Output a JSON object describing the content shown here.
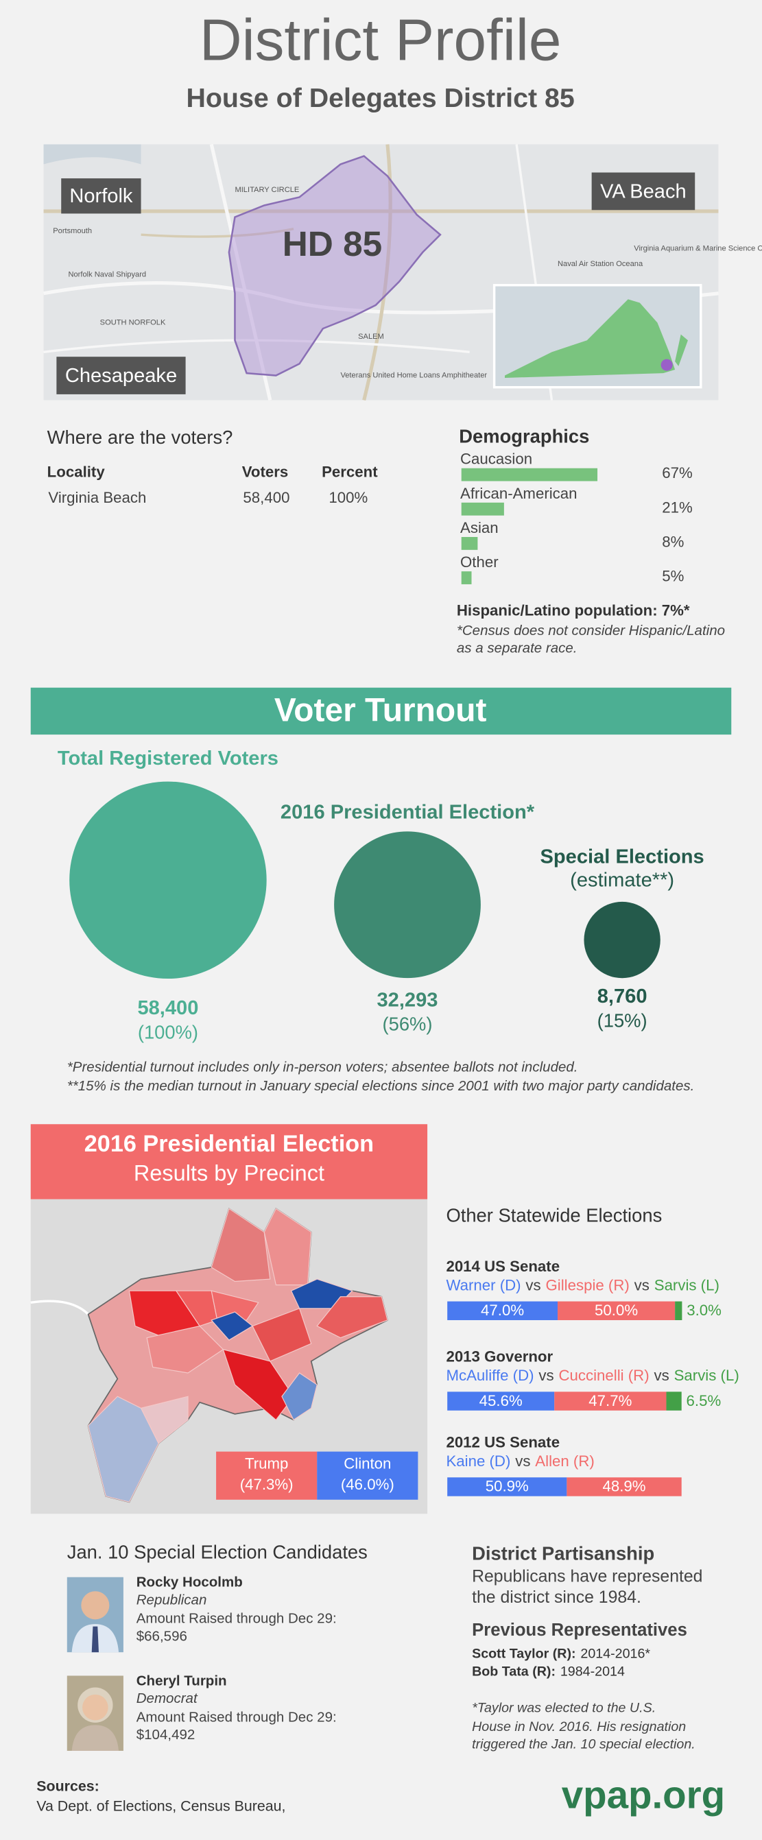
{
  "header": {
    "title": "District Profile",
    "subtitle": "House of Delegates District 85"
  },
  "map": {
    "labels": {
      "norfolk": "Norfolk",
      "va_beach": "VA Beach",
      "chesapeake": "Chesapeake",
      "district": "HD 85"
    },
    "places": [
      "Portsmouth",
      "Norfolk Naval Shipyard",
      "MILITARY CIRCLE",
      "SOUTH NORFOLK",
      "SALEM",
      "Naval Air Station Oceana",
      "Virginia Aquarium & Marine Science Center",
      "Veterans United Home Loans Amphitheater"
    ]
  },
  "voters": {
    "title": "Where are the voters?",
    "headers": [
      "Locality",
      "Voters",
      "Percent"
    ],
    "rows": [
      [
        "Virginia Beach",
        "58,400",
        "100%"
      ]
    ]
  },
  "demographics": {
    "title": "Demographics",
    "color": "#78c27d",
    "groups": [
      {
        "label": "Caucasion",
        "value": 67,
        "value_label": "67%"
      },
      {
        "label": "African-American",
        "value": 21,
        "value_label": "21%"
      },
      {
        "label": "Asian",
        "value": 8,
        "value_label": "8%"
      },
      {
        "label": "Other",
        "value": 5,
        "value_label": "5%"
      }
    ],
    "hispanic": "Hispanic/Latino population: 7%*",
    "note": [
      "*Census does not consider Hispanic/Latino",
      "as a separate race."
    ]
  },
  "turnout": {
    "title": "Voter Turnout",
    "groups": [
      {
        "title": [
          "Total Registered Voters"
        ],
        "value": 58400,
        "value_label": "58,400",
        "percent_label": "(100%)",
        "color": "#4caf93"
      },
      {
        "title": [
          "2016 Presidential Election*"
        ],
        "value": 32293,
        "value_label": "32,293",
        "percent_label": "(56%)",
        "color": "#3e8a72"
      },
      {
        "title": [
          "Special Elections",
          "(estimate**)"
        ],
        "value": 8760,
        "value_label": "8,760",
        "percent_label": "(15%)",
        "color": "#245a4b"
      }
    ],
    "notes": [
      "*Presidential turnout includes only in-person voters; absentee ballots not included.",
      "**15% is the median turnout in January special elections since 2001 with two major party candidates."
    ]
  },
  "results": {
    "title": "2016 Presidential Election",
    "subtitle": "Results by Precinct",
    "legend": [
      {
        "name": "Trump",
        "label": "(47.3%)",
        "color": "#f26b6b"
      },
      {
        "name": "Clinton",
        "label": "(46.0%)",
        "color": "#4a7af0"
      }
    ]
  },
  "statewide": {
    "title": "Other Statewide Elections",
    "separator": "vs",
    "races": [
      {
        "title": "2014 US Senate",
        "candidates": [
          {
            "name": "Warner (D)",
            "value": 47.0,
            "value_label": "47.0%",
            "color": "#4a7af0"
          },
          {
            "name": "Gillespie (R)",
            "value": 50.0,
            "value_label": "50.0%",
            "color": "#f26b6b"
          },
          {
            "name": "Sarvis (L)",
            "value": 3.0,
            "value_label": "3.0%",
            "color": "#43a047"
          }
        ]
      },
      {
        "title": "2013 Governor",
        "candidates": [
          {
            "name": "McAuliffe (D)",
            "value": 45.6,
            "value_label": "45.6%",
            "color": "#4a7af0"
          },
          {
            "name": "Cuccinelli (R)",
            "value": 47.7,
            "value_label": "47.7%",
            "color": "#f26b6b"
          },
          {
            "name": "Sarvis (L)",
            "value": 6.5,
            "value_label": "6.5%",
            "color": "#43a047"
          }
        ]
      },
      {
        "title": "2012 US Senate",
        "candidates": [
          {
            "name": "Kaine (D)",
            "value": 50.9,
            "value_label": "50.9%",
            "color": "#4a7af0"
          },
          {
            "name": "Allen (R)",
            "value": 48.9,
            "value_label": "48.9%",
            "color": "#f26b6b"
          }
        ]
      }
    ]
  },
  "candidates": {
    "title": "Jan. 10 Special Election Candidates",
    "people": [
      {
        "name": "Rocky Hocolmb",
        "party": "Republican",
        "raised_label": "Amount Raised through Dec 29:",
        "raised": "$66,596"
      },
      {
        "name": "Cheryl Turpin",
        "party": "Democrat",
        "raised_label": "Amount Raised through Dec 29:",
        "raised": "$104,492"
      }
    ]
  },
  "partisanship": {
    "title": "District Partisanship",
    "text": [
      "Republicans have represented",
      "the district since 1984."
    ]
  },
  "representatives": {
    "title": "Previous Representatives",
    "people": [
      {
        "name": "Scott Taylor (R):",
        "years": "2014-2016*"
      },
      {
        "name": "Bob Tata (R):",
        "years": "1984-2014"
      }
    ],
    "note": [
      "*Taylor was elected to the U.S.",
      "House in Nov. 2016. His resignation",
      "triggered the Jan. 10 special election."
    ]
  },
  "sources": {
    "title": "Sources:",
    "text": "Va Dept. of Elections,  Census Bureau,"
  },
  "brand": "vpap.org"
}
